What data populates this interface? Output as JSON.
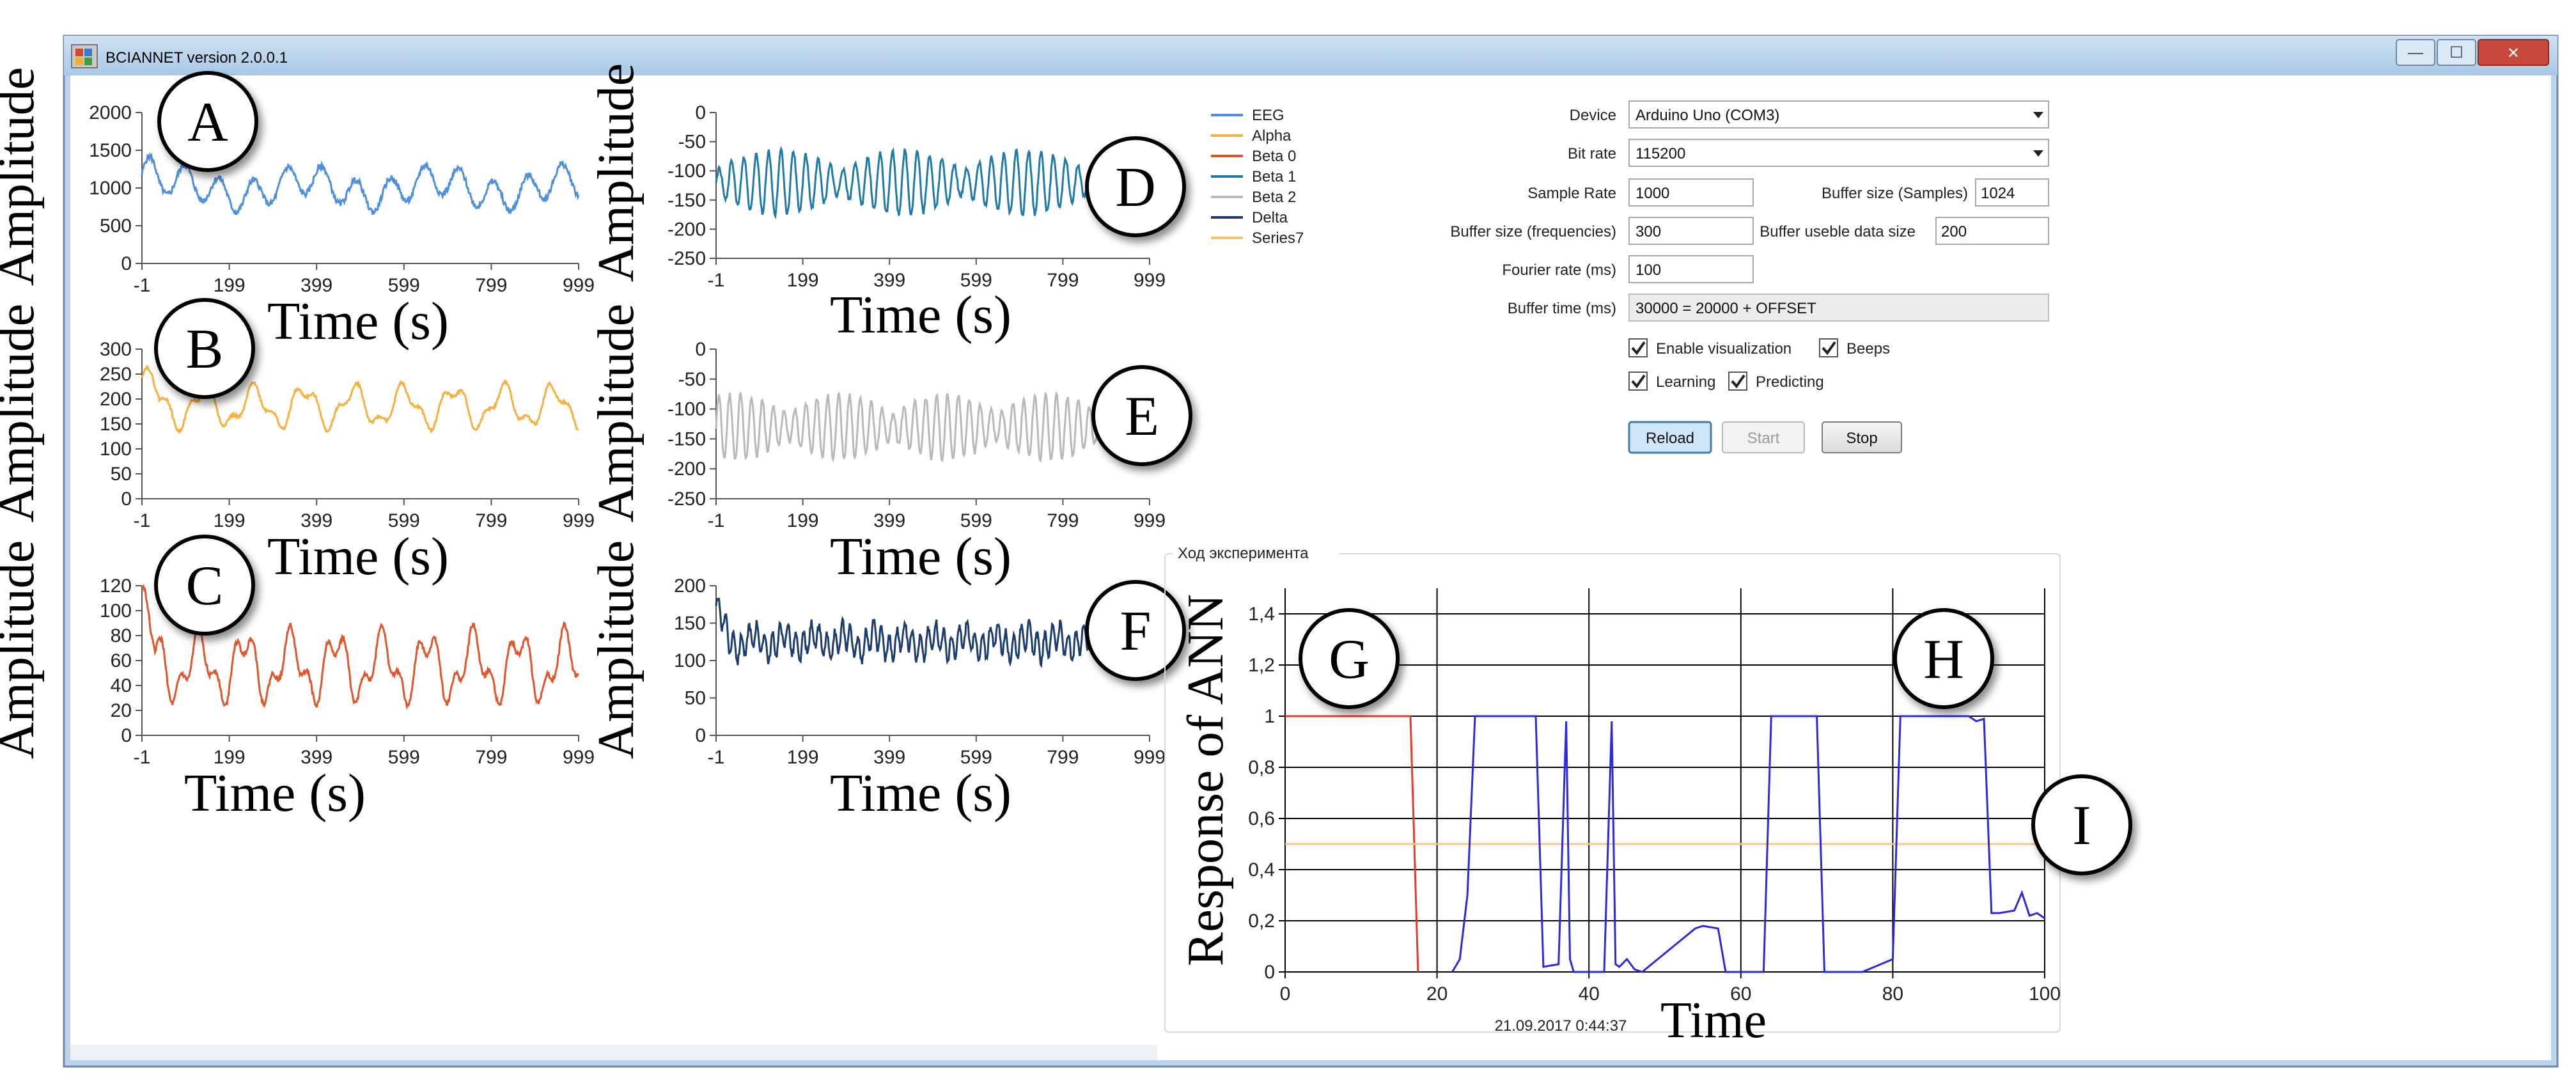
{
  "window": {
    "title": "BCIANNET version 2.0.0.1",
    "controls": {
      "minimize": "—",
      "maximize": "☐",
      "close": "✕"
    }
  },
  "signal_panels": [
    {
      "callout": "A",
      "ylabel": "Amplitude",
      "xlabel": "Time (s)",
      "color": "#4f8fdc",
      "yticks": [
        "0",
        "500",
        "1000",
        "1500",
        "2000"
      ],
      "xticks": [
        "-1",
        "199",
        "399",
        "599",
        "799",
        "999"
      ]
    },
    {
      "callout": "B",
      "ylabel": "Amplitude",
      "xlabel": "Time (s)",
      "color": "#f6b040",
      "yticks": [
        "0",
        "50",
        "100",
        "150",
        "200",
        "250",
        "300"
      ],
      "xticks": [
        "-1",
        "199",
        "399",
        "599",
        "799",
        "999"
      ]
    },
    {
      "callout": "C",
      "ylabel": "Amplitude",
      "xlabel": "Time (s)",
      "color": "#e0552c",
      "yticks": [
        "0",
        "20",
        "40",
        "60",
        "80",
        "100",
        "120"
      ],
      "xticks": [
        "-1",
        "199",
        "399",
        "599",
        "799",
        "999"
      ]
    },
    {
      "callout": "D",
      "ylabel": "Amplitude",
      "xlabel": "Time (s)",
      "color": "#1f7aa8",
      "yticks": [
        "-250",
        "-200",
        "-150",
        "-100",
        "-50",
        "0"
      ],
      "xticks": [
        "-1",
        "199",
        "399",
        "599",
        "799",
        "999"
      ]
    },
    {
      "callout": "E",
      "ylabel": "Amplitude",
      "xlabel": "Time (s)",
      "color": "#b9b9b9",
      "yticks": [
        "-250",
        "-200",
        "-150",
        "-100",
        "-50",
        "0"
      ],
      "xticks": [
        "-1",
        "199",
        "399",
        "599",
        "799",
        "999"
      ]
    },
    {
      "callout": "F",
      "ylabel": "Amplitude",
      "xlabel": "Time (s)",
      "color": "#1c3c6e",
      "yticks": [
        "0",
        "50",
        "100",
        "150",
        "200"
      ],
      "xticks": [
        "-1",
        "199",
        "399",
        "599",
        "799",
        "999"
      ]
    }
  ],
  "legend": [
    {
      "label": "EEG",
      "color": "#4f8fdc"
    },
    {
      "label": "Alpha",
      "color": "#f6b040"
    },
    {
      "label": "Beta 0",
      "color": "#e0552c"
    },
    {
      "label": "Beta 1",
      "color": "#1f7aa8"
    },
    {
      "label": "Beta 2",
      "color": "#b9b9b9"
    },
    {
      "label": "Delta",
      "color": "#1c3c6e"
    },
    {
      "label": "Series7",
      "color": "#f2c770"
    }
  ],
  "settings": {
    "device_label": "Device",
    "device_value": "Arduino Uno (COM3)",
    "bitrate_label": "Bit rate",
    "bitrate_value": "115200",
    "sample_rate_label": "Sample Rate",
    "sample_rate_value": "1000",
    "buffer_samples_label": "Buffer size (Samples)",
    "buffer_samples_value": "1024",
    "buffer_freq_label": "Buffer size (frequencies)",
    "buffer_freq_value": "300",
    "buffer_useble_label": "Buffer useble data size",
    "buffer_useble_value": "200",
    "fourier_rate_label": "Fourier rate (ms)",
    "fourier_rate_value": "100",
    "buffer_time_label": "Buffer time (ms)",
    "buffer_time_value": "30000 = 20000 + OFFSET",
    "enable_visualization_label": "Enable visualization",
    "beeps_label": "Beeps",
    "learning_label": "Learning",
    "predicting_label": "Predicting",
    "checked": {
      "enable_visualization": true,
      "beeps": true,
      "learning": true,
      "predicting": true
    },
    "reload_label": "Reload",
    "start_label": "Start",
    "stop_label": "Stop"
  },
  "experiment": {
    "group_title": "Ход эксперимента",
    "timestamp": "21.09.2017 0:44:37",
    "callouts": [
      "G",
      "H",
      "I"
    ]
  },
  "chart_data": {
    "type": "line",
    "ylabel": "Response of ANN",
    "xlabel": "Time",
    "xlim": [
      0,
      100
    ],
    "ylim": [
      0,
      1.5
    ],
    "xticks": [
      "0",
      "20",
      "40",
      "60",
      "80",
      "100"
    ],
    "yticks": [
      "0",
      "0,2",
      "0,4",
      "0,6",
      "0,8",
      "1",
      "1,2",
      "1,4"
    ],
    "grid": true,
    "series": [
      {
        "color": "#e23b2e",
        "x": [
          0,
          16.5,
          17,
          17.5
        ],
        "y": [
          1,
          1,
          0.5,
          0
        ]
      },
      {
        "color": "#f4c88c",
        "x": [
          0,
          100
        ],
        "y": [
          0.5,
          0.5
        ]
      },
      {
        "color": "#2a2ad8",
        "x": [
          22,
          23,
          24,
          25,
          33,
          34,
          36,
          37,
          37.5,
          38,
          40,
          42,
          43,
          43.5,
          44,
          45,
          46,
          47,
          54,
          55,
          57,
          58,
          63,
          64,
          70,
          71,
          76,
          80,
          81,
          82,
          90,
          91,
          92,
          93,
          94,
          96,
          97,
          98,
          99,
          100
        ],
        "y": [
          0,
          0.05,
          0.3,
          1,
          1,
          0.02,
          0.03,
          0.98,
          0.05,
          0,
          0,
          0,
          0.98,
          0.03,
          0.02,
          0.05,
          0.01,
          0,
          0.17,
          0.18,
          0.17,
          0,
          0,
          1,
          1,
          0,
          0,
          0.05,
          1,
          1,
          1,
          0.98,
          0.99,
          0.23,
          0.23,
          0.24,
          0.31,
          0.22,
          0.23,
          0.21
        ]
      }
    ]
  }
}
